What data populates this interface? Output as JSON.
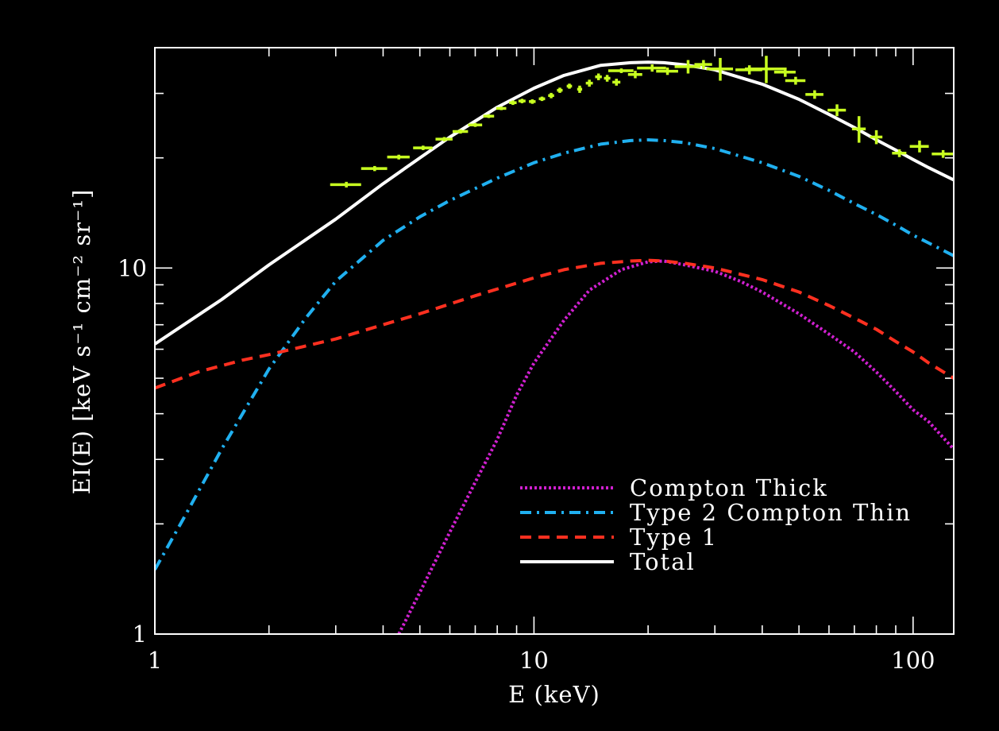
{
  "chart_data": {
    "type": "line",
    "xscale": "log",
    "yscale": "log",
    "xlim": [
      1,
      128
    ],
    "ylim": [
      1,
      40
    ],
    "xlabel": "E (keV)",
    "ylabel": "EI(E) [keV s⁻¹ cm⁻² sr⁻¹]",
    "x_ticks": [
      {
        "value": 1,
        "label": "1"
      },
      {
        "value": 10,
        "label": "10"
      },
      {
        "value": 100,
        "label": "100"
      }
    ],
    "y_ticks": [
      {
        "value": 1,
        "label": "1"
      },
      {
        "value": 10,
        "label": "10"
      }
    ],
    "legend_position": "bottom-right",
    "series": [
      {
        "name": "Compton Thick",
        "style": "dotted",
        "color": "#d020d0",
        "x": [
          4.4,
          5,
          6,
          7,
          8,
          9,
          10,
          12,
          14,
          17,
          20,
          22,
          25,
          30,
          35,
          40,
          50,
          60,
          70,
          80,
          90,
          100,
          110,
          128
        ],
        "y": [
          1.0,
          1.3,
          1.9,
          2.6,
          3.4,
          4.5,
          5.5,
          7.2,
          8.7,
          9.9,
          10.4,
          10.45,
          10.2,
          9.8,
          9.2,
          8.6,
          7.5,
          6.6,
          5.9,
          5.2,
          4.6,
          4.1,
          3.8,
          3.2
        ]
      },
      {
        "name": "Type 2 Compton Thin",
        "style": "dashdot",
        "color": "#20b0f0",
        "x": [
          1,
          1.2,
          1.5,
          2,
          2.5,
          3,
          4,
          5,
          6,
          8,
          10,
          12,
          15,
          18,
          20,
          22,
          25,
          30,
          40,
          50,
          60,
          70,
          80,
          90,
          100,
          110,
          128
        ],
        "y": [
          1.5,
          2.1,
          3.2,
          5.3,
          7.3,
          9.2,
          11.9,
          13.8,
          15.3,
          17.6,
          19.4,
          20.6,
          21.8,
          22.3,
          22.4,
          22.3,
          22.0,
          21.2,
          19.4,
          17.8,
          16.3,
          15.0,
          14.0,
          13.1,
          12.3,
          11.7,
          10.8
        ]
      },
      {
        "name": "Type 1",
        "style": "dashed",
        "color": "#ff3020",
        "x": [
          1,
          1.3,
          1.7,
          2,
          3,
          4,
          5,
          7,
          10,
          12,
          15,
          18,
          20,
          22,
          25,
          30,
          40,
          50,
          60,
          70,
          80,
          90,
          100,
          110,
          128
        ],
        "y": [
          4.7,
          5.2,
          5.6,
          5.8,
          6.4,
          7.0,
          7.5,
          8.4,
          9.4,
          9.9,
          10.3,
          10.45,
          10.5,
          10.45,
          10.3,
          10.0,
          9.3,
          8.6,
          7.9,
          7.3,
          6.8,
          6.3,
          5.9,
          5.5,
          5.0
        ]
      },
      {
        "name": "Total",
        "style": "solid",
        "color": "#ffffff",
        "x": [
          1,
          1.5,
          2,
          3,
          4,
          5,
          6,
          8,
          10,
          12,
          15,
          18,
          20,
          22,
          25,
          30,
          40,
          50,
          60,
          70,
          80,
          90,
          100,
          110,
          128
        ],
        "y": [
          6.2,
          8.2,
          10.2,
          13.6,
          17.0,
          20.0,
          22.8,
          27.5,
          31.0,
          33.6,
          35.8,
          36.4,
          36.5,
          36.4,
          35.9,
          34.8,
          31.8,
          28.9,
          26.3,
          24.2,
          22.4,
          21.0,
          19.8,
          18.8,
          17.4
        ]
      }
    ],
    "measurements": {
      "name": "data",
      "color": "#c8ff20",
      "points": [
        {
          "x": 3.2,
          "y": 16.9,
          "xerr": 0.3,
          "yerr": 0.3
        },
        {
          "x": 3.8,
          "y": 18.7,
          "xerr": 0.3,
          "yerr": 0.3
        },
        {
          "x": 4.4,
          "y": 20.1,
          "xerr": 0.3,
          "yerr": 0.3
        },
        {
          "x": 5.1,
          "y": 21.3,
          "xerr": 0.3,
          "yerr": 0.3
        },
        {
          "x": 5.8,
          "y": 22.5,
          "xerr": 0.3,
          "yerr": 0.3
        },
        {
          "x": 6.4,
          "y": 23.6,
          "xerr": 0.3,
          "yerr": 0.3
        },
        {
          "x": 7.0,
          "y": 24.6,
          "xerr": 0.3,
          "yerr": 0.3
        },
        {
          "x": 7.6,
          "y": 26.0,
          "xerr": 0.25,
          "yerr": 0.3
        },
        {
          "x": 8.2,
          "y": 27.3,
          "xerr": 0.25,
          "yerr": 0.3
        },
        {
          "x": 8.8,
          "y": 28.3,
          "xerr": 0.2,
          "yerr": 0.4
        },
        {
          "x": 9.3,
          "y": 28.6,
          "xerr": 0.2,
          "yerr": 0.4
        },
        {
          "x": 9.9,
          "y": 28.5,
          "xerr": 0.2,
          "yerr": 0.4
        },
        {
          "x": 10.5,
          "y": 29.0,
          "xerr": 0.2,
          "yerr": 0.4
        },
        {
          "x": 11.1,
          "y": 29.6,
          "xerr": 0.2,
          "yerr": 0.5
        },
        {
          "x": 11.7,
          "y": 30.6,
          "xerr": 0.2,
          "yerr": 0.5
        },
        {
          "x": 12.4,
          "y": 31.4,
          "xerr": 0.2,
          "yerr": 0.5
        },
        {
          "x": 13.2,
          "y": 30.8,
          "xerr": 0.2,
          "yerr": 0.7
        },
        {
          "x": 14.0,
          "y": 32.0,
          "xerr": 0.3,
          "yerr": 0.7
        },
        {
          "x": 14.8,
          "y": 33.3,
          "xerr": 0.3,
          "yerr": 0.7
        },
        {
          "x": 15.6,
          "y": 33.0,
          "xerr": 0.3,
          "yerr": 0.7
        },
        {
          "x": 16.5,
          "y": 32.2,
          "xerr": 0.4,
          "yerr": 0.7
        },
        {
          "x": 17.0,
          "y": 34.6,
          "xerr": 1.3,
          "yerr": 0.5
        },
        {
          "x": 18.5,
          "y": 33.8,
          "xerr": 0.8,
          "yerr": 0.8
        },
        {
          "x": 20.5,
          "y": 35.2,
          "xerr": 1.8,
          "yerr": 0.8
        },
        {
          "x": 22.5,
          "y": 34.5,
          "xerr": 1.5,
          "yerr": 0.8
        },
        {
          "x": 25.5,
          "y": 35.5,
          "xerr": 2.0,
          "yerr": 1.5
        },
        {
          "x": 28.0,
          "y": 36.0,
          "xerr": 1.5,
          "yerr": 1.0
        },
        {
          "x": 31.0,
          "y": 35.0,
          "xerr": 2.5,
          "yerr": 2.5
        },
        {
          "x": 37.0,
          "y": 34.8,
          "xerr": 3.0,
          "yerr": 1.0
        },
        {
          "x": 41.0,
          "y": 35.0,
          "xerr": 5.0,
          "yerr": 3.0
        },
        {
          "x": 46.0,
          "y": 34.3,
          "xerr": 3.0,
          "yerr": 1.0
        },
        {
          "x": 49.0,
          "y": 32.5,
          "xerr": 3.0,
          "yerr": 0.8
        },
        {
          "x": 55.0,
          "y": 29.8,
          "xerr": 3.0,
          "yerr": 0.8
        },
        {
          "x": 63.0,
          "y": 27.0,
          "xerr": 3.5,
          "yerr": 1.0
        },
        {
          "x": 72.0,
          "y": 24.0,
          "xerr": 3.0,
          "yerr": 2.0
        },
        {
          "x": 80.0,
          "y": 22.8,
          "xerr": 3.0,
          "yerr": 1.0
        },
        {
          "x": 92.0,
          "y": 20.6,
          "xerr": 4.0,
          "yerr": 0.5
        },
        {
          "x": 104.0,
          "y": 21.5,
          "xerr": 6.0,
          "yerr": 0.8
        },
        {
          "x": 120.0,
          "y": 20.5,
          "xerr": 8.0,
          "yerr": 0.5
        }
      ]
    }
  }
}
